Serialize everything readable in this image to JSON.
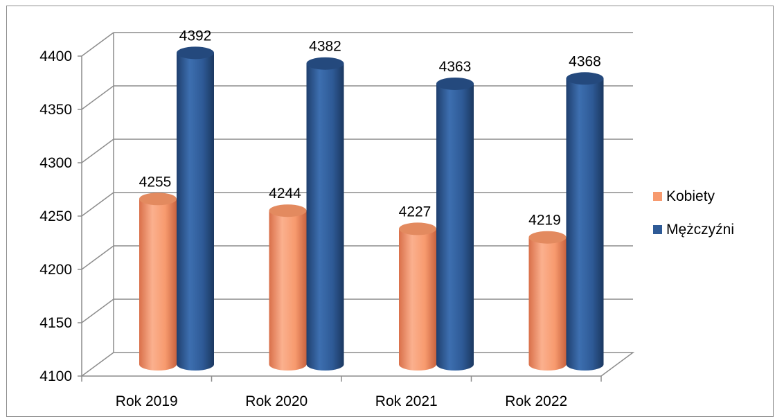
{
  "chart_data": {
    "type": "bar",
    "title": "",
    "xlabel": "",
    "ylabel": "",
    "categories": [
      "Rok 2019",
      "Rok 2020",
      "Rok 2021",
      "Rok 2022"
    ],
    "series": [
      {
        "name": "Kobiety",
        "values": [
          4255,
          4244,
          4227,
          4219
        ],
        "color": "#f79a6e"
      },
      {
        "name": "Mężczyźni",
        "values": [
          4392,
          4382,
          4363,
          4368
        ],
        "color": "#2e5a96"
      }
    ],
    "ylim": [
      4100,
      4400
    ],
    "yticks": [
      4100,
      4150,
      4200,
      4250,
      4300,
      4350,
      4400
    ],
    "grid": true,
    "style": "3d-cylinder",
    "legend_position": "right"
  }
}
